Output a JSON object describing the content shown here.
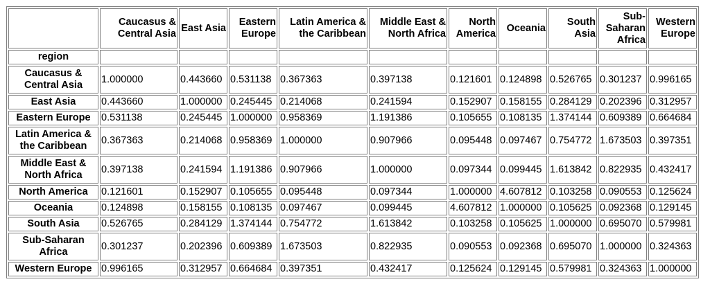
{
  "table": {
    "index_name": "region",
    "columns": [
      "Caucasus & Central Asia",
      "East Asia",
      "Eastern Europe",
      "Latin America & the Caribbean",
      "Middle East & North Africa",
      "North America",
      "Oceania",
      "South Asia",
      "Sub-Saharan Africa",
      "Western Europe"
    ],
    "rows": [
      {
        "label": "Caucasus & Central Asia",
        "values": [
          "1.000000",
          "0.443660",
          "0.531138",
          "0.367363",
          "0.397138",
          "0.121601",
          "0.124898",
          "0.526765",
          "0.301237",
          "0.996165"
        ]
      },
      {
        "label": "East Asia",
        "values": [
          "0.443660",
          "1.000000",
          "0.245445",
          "0.214068",
          "0.241594",
          "0.152907",
          "0.158155",
          "0.284129",
          "0.202396",
          "0.312957"
        ]
      },
      {
        "label": "Eastern Europe",
        "values": [
          "0.531138",
          "0.245445",
          "1.000000",
          "0.958369",
          "1.191386",
          "0.105655",
          "0.108135",
          "1.374144",
          "0.609389",
          "0.664684"
        ]
      },
      {
        "label": "Latin America & the Caribbean",
        "values": [
          "0.367363",
          "0.214068",
          "0.958369",
          "1.000000",
          "0.907966",
          "0.095448",
          "0.097467",
          "0.754772",
          "1.673503",
          "0.397351"
        ]
      },
      {
        "label": "Middle East & North Africa",
        "values": [
          "0.397138",
          "0.241594",
          "1.191386",
          "0.907966",
          "1.000000",
          "0.097344",
          "0.099445",
          "1.613842",
          "0.822935",
          "0.432417"
        ]
      },
      {
        "label": "North America",
        "values": [
          "0.121601",
          "0.152907",
          "0.105655",
          "0.095448",
          "0.097344",
          "1.000000",
          "4.607812",
          "0.103258",
          "0.090553",
          "0.125624"
        ]
      },
      {
        "label": "Oceania",
        "values": [
          "0.124898",
          "0.158155",
          "0.108135",
          "0.097467",
          "0.099445",
          "4.607812",
          "1.000000",
          "0.105625",
          "0.092368",
          "0.129145"
        ]
      },
      {
        "label": "South Asia",
        "values": [
          "0.526765",
          "0.284129",
          "1.374144",
          "0.754772",
          "1.613842",
          "0.103258",
          "0.105625",
          "1.000000",
          "0.695070",
          "0.579981"
        ]
      },
      {
        "label": "Sub-Saharan Africa",
        "values": [
          "0.301237",
          "0.202396",
          "0.609389",
          "1.673503",
          "0.822935",
          "0.090553",
          "0.092368",
          "0.695070",
          "1.000000",
          "0.324363"
        ]
      },
      {
        "label": "Western Europe",
        "values": [
          "0.996165",
          "0.312957",
          "0.664684",
          "0.397351",
          "0.432417",
          "0.125624",
          "0.129145",
          "0.579981",
          "0.324363",
          "1.000000"
        ]
      }
    ]
  }
}
